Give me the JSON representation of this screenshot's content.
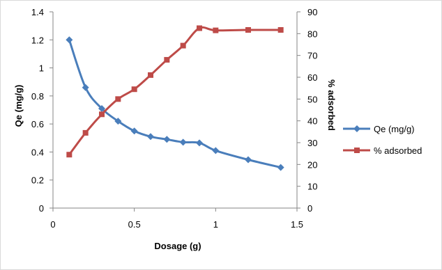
{
  "chart_data": {
    "type": "line",
    "xlabel": "Dosage (g)",
    "ylabel": "Qe  (mg/g)",
    "y2label": "% adsorbed",
    "xlim": [
      0,
      1.5
    ],
    "ylim": [
      0,
      1.4
    ],
    "y2lim": [
      0,
      90
    ],
    "xticks": [
      "0",
      "0.5",
      "1",
      "1.5"
    ],
    "yticks": [
      "0",
      "0.2",
      "0.4",
      "0.6",
      "0.8",
      "1",
      "1.2",
      "1.4"
    ],
    "y2ticks": [
      "0",
      "10",
      "20",
      "30",
      "40",
      "50",
      "60",
      "70",
      "80",
      "90"
    ],
    "grid": false,
    "legend_position": "right",
    "series": [
      {
        "name": "Qe (mg/g)",
        "axis": "left",
        "color": "#4A7EBB",
        "marker": "diamond",
        "x": [
          0.1,
          0.2,
          0.3,
          0.4,
          0.5,
          0.6,
          0.7,
          0.8,
          0.9,
          1.0,
          1.2,
          1.4
        ],
        "values": [
          1.2,
          0.86,
          0.71,
          0.62,
          0.55,
          0.51,
          0.49,
          0.47,
          0.465,
          0.41,
          0.345,
          0.29
        ]
      },
      {
        "name": "% adsorbed",
        "axis": "right",
        "color": "#BE4B48",
        "marker": "square",
        "x": [
          0.1,
          0.2,
          0.3,
          0.4,
          0.5,
          0.6,
          0.7,
          0.8,
          0.9,
          1.0,
          1.2,
          1.4
        ],
        "values": [
          24.5,
          34.5,
          43,
          50,
          54.5,
          61,
          68,
          74.5,
          82.5,
          81.5,
          81.7,
          81.7
        ]
      }
    ]
  }
}
